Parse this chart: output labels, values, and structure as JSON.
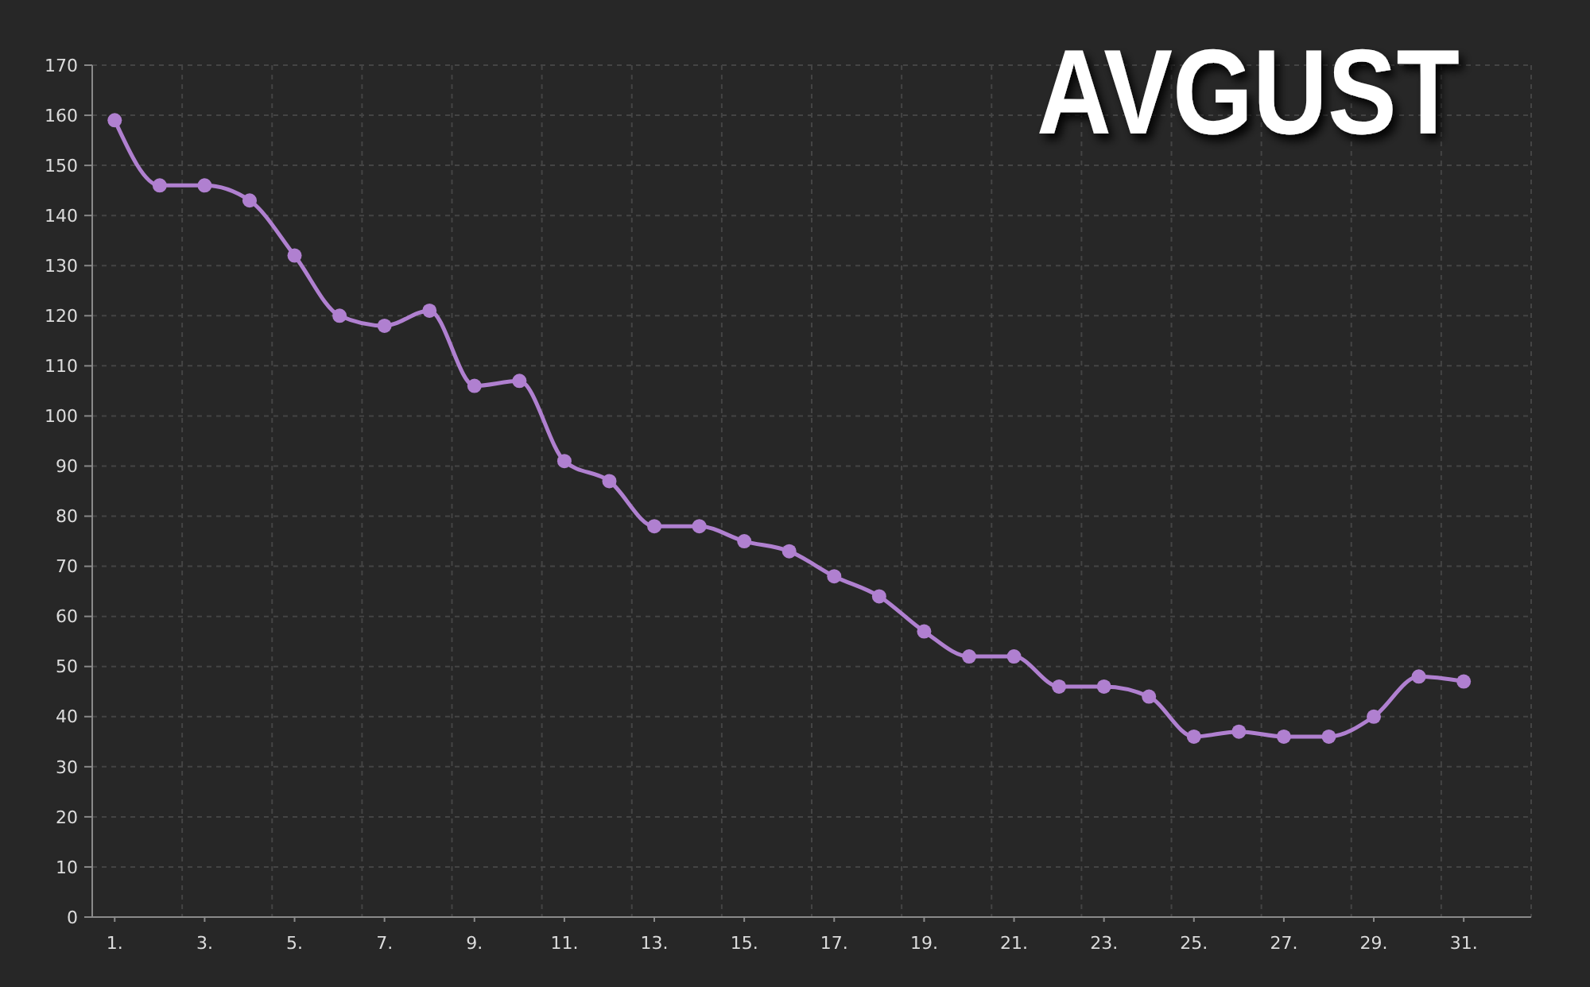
{
  "chart_data": {
    "type": "line",
    "title": "AVGUST",
    "categories": [
      "1.",
      null,
      "3.",
      null,
      "5.",
      null,
      "7.",
      null,
      "9.",
      null,
      "11.",
      null,
      "13.",
      null,
      "15.",
      null,
      "17.",
      null,
      "19.",
      null,
      "21.",
      null,
      "23.",
      null,
      "25.",
      null,
      "27.",
      null,
      "29.",
      null,
      "31."
    ],
    "series": [
      {
        "color": "#b080d0",
        "values": [
          159,
          146,
          146,
          143,
          132,
          120,
          118,
          121,
          106,
          107,
          91,
          87,
          78,
          78,
          75,
          73,
          68,
          64,
          57,
          52,
          52,
          46,
          46,
          44,
          36,
          37,
          36,
          36,
          40,
          48,
          47
        ]
      }
    ],
    "ylim": [
      0,
      170
    ],
    "yticks": [
      0,
      10,
      20,
      30,
      40,
      50,
      60,
      70,
      80,
      90,
      100,
      110,
      120,
      130,
      140,
      150,
      160,
      170
    ],
    "grid": true,
    "marker": "circle"
  }
}
